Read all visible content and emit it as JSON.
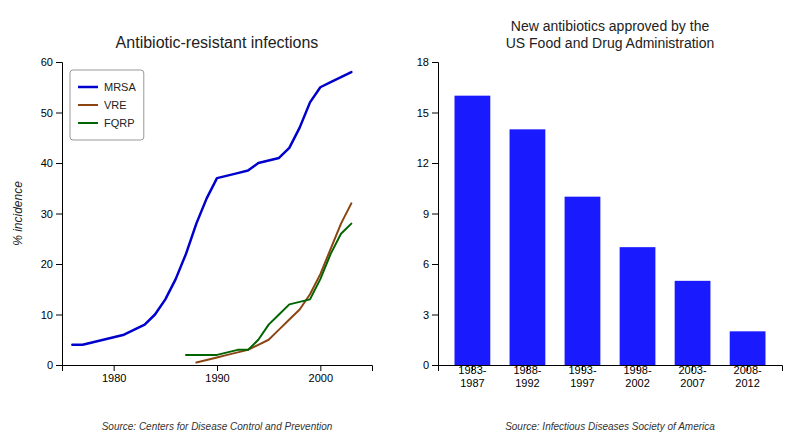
{
  "chart_data": [
    {
      "type": "line",
      "title": "Antibiotic-resistant infections",
      "ylabel": "% incidence",
      "source": "Source:  Centers for Disease Control and Prevention",
      "x": [
        1976,
        1977,
        1978,
        1979,
        1980,
        1981,
        1982,
        1983,
        1984,
        1985,
        1986,
        1987,
        1988,
        1989,
        1990,
        1991,
        1992,
        1993,
        1994,
        1995,
        1996,
        1997,
        1998,
        1999,
        2000,
        2001,
        2002,
        2003
      ],
      "series": [
        {
          "name": "MRSA",
          "color": "#0000cc",
          "values": [
            4,
            4,
            4.5,
            5,
            5.5,
            6,
            7,
            8,
            10,
            13,
            17,
            22,
            28,
            33,
            37,
            37.5,
            38,
            38.5,
            40,
            40.5,
            41,
            43,
            47,
            52,
            55,
            56,
            57,
            58
          ]
        },
        {
          "name": "VRE",
          "color": "#8B4513",
          "values": [
            null,
            null,
            null,
            null,
            null,
            null,
            null,
            null,
            null,
            null,
            null,
            null,
            0.5,
            1,
            1.5,
            2,
            2.5,
            3,
            4,
            5,
            7,
            9,
            11,
            14,
            18,
            23,
            28,
            32
          ]
        },
        {
          "name": "FQRP",
          "color": "#006400",
          "values": [
            null,
            null,
            null,
            null,
            null,
            null,
            null,
            null,
            null,
            null,
            null,
            2,
            2,
            2,
            2,
            2.5,
            3,
            3,
            5,
            8,
            10,
            12,
            12.5,
            13,
            17,
            22,
            26,
            28
          ]
        }
      ],
      "xlim": [
        1975,
        2005
      ],
      "xticks": [
        1980,
        1990,
        2000
      ],
      "ylim": [
        0,
        60
      ],
      "yticks": [
        0,
        10,
        20,
        30,
        40,
        50,
        60
      ],
      "legend": "upper-left"
    },
    {
      "type": "bar",
      "title": "New antibiotics approved by the\nUS Food and Drug Administration",
      "source": "Source:  Infectious Diseases Society of America",
      "categories": [
        "1983-\n1987",
        "1988-\n1992",
        "1993-\n1997",
        "1998-\n2002",
        "2003-\n2007",
        "2008-\n2012"
      ],
      "values": [
        16,
        14,
        10,
        7,
        5,
        2
      ],
      "color": "#1a1aff",
      "ylim": [
        0,
        18
      ],
      "yticks": [
        0,
        3,
        6,
        9,
        12,
        15,
        18
      ]
    }
  ]
}
